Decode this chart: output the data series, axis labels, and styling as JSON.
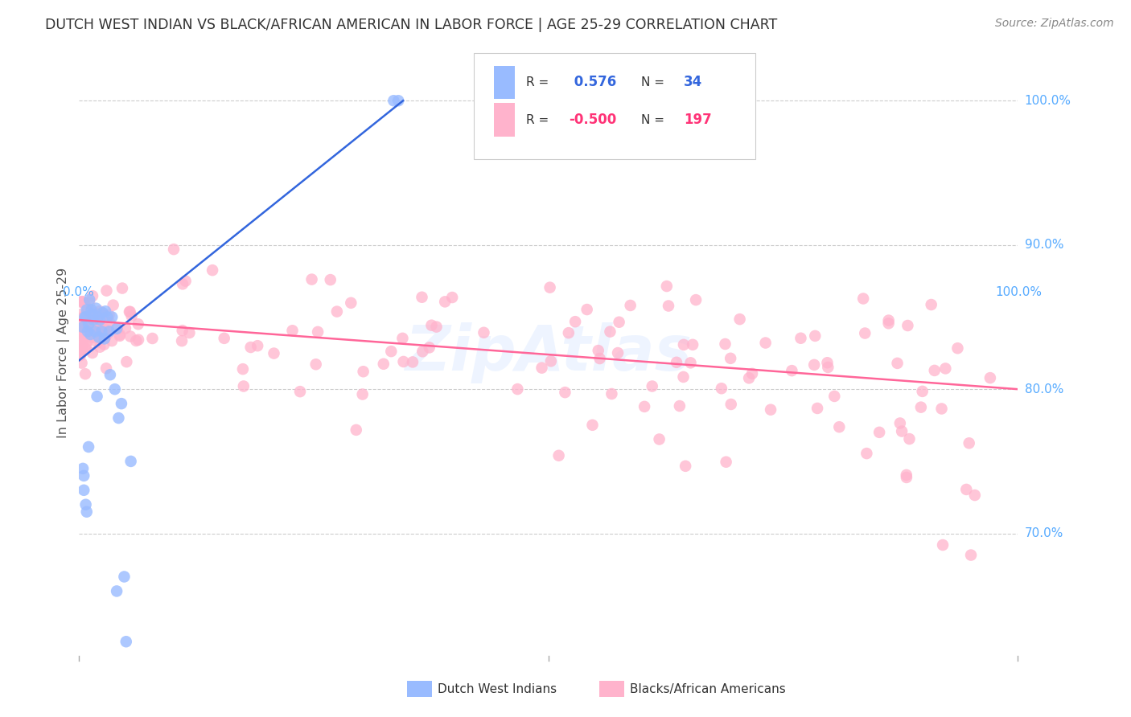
{
  "title": "DUTCH WEST INDIAN VS BLACK/AFRICAN AMERICAN IN LABOR FORCE | AGE 25-29 CORRELATION CHART",
  "source": "Source: ZipAtlas.com",
  "ylabel": "In Labor Force | Age 25-29",
  "ytick_labels": [
    "70.0%",
    "80.0%",
    "90.0%",
    "100.0%"
  ],
  "ytick_values": [
    0.7,
    0.8,
    0.9,
    1.0
  ],
  "xlim": [
    0.0,
    1.0
  ],
  "ylim": [
    0.615,
    1.035
  ],
  "blue_R": 0.576,
  "blue_N": 34,
  "pink_R": -0.5,
  "pink_N": 197,
  "blue_color": "#99BBFF",
  "pink_color": "#FFB3CC",
  "blue_line_color": "#3366DD",
  "pink_line_color": "#FF6699",
  "legend_label_blue": "Dutch West Indians",
  "legend_label_pink": "Blacks/African Americans",
  "watermark": "ZipAtlas",
  "background_color": "#FFFFFF",
  "grid_color": "#CCCCCC",
  "axis_label_color": "#55AAFF",
  "title_color": "#333333",
  "legend_R_color_blue": "#3366DD",
  "legend_R_color_pink": "#FF3377",
  "legend_text_color": "#333333"
}
